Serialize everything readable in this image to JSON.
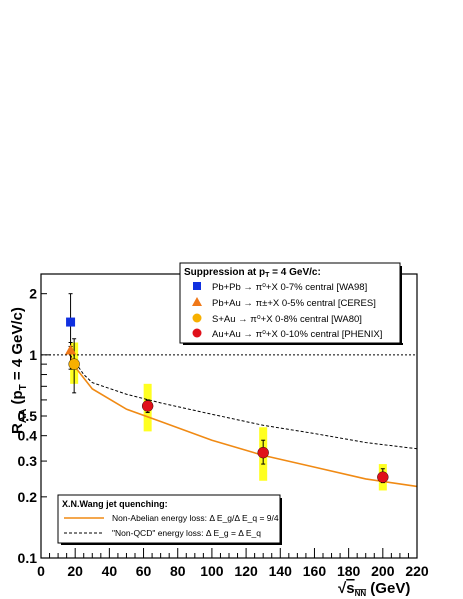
{
  "chart_data": {
    "type": "scatter",
    "xlabel": {
      "prefix": "√",
      "base": "s",
      "sub": "NN",
      "unit": " (GeV)"
    },
    "ylabel": {
      "main": "R",
      "sub": "AA",
      "paren": " (p",
      "paren_sub": "T",
      "tail": " = 4 GeV/c)"
    },
    "xlim": [
      0,
      220
    ],
    "ylim": [
      0.1,
      2.5
    ],
    "yscale": "log",
    "x_ticks": [
      0,
      20,
      40,
      60,
      80,
      100,
      120,
      140,
      160,
      180,
      200,
      220
    ],
    "x_tick_labels": [
      "0",
      "20",
      "40",
      "60",
      "80",
      "100",
      "120",
      "140",
      "160",
      "180",
      "200",
      "220"
    ],
    "y_ticks": [
      0.1,
      0.2,
      0.3,
      0.4,
      0.5,
      1,
      2
    ],
    "y_tick_labels": [
      "0.1",
      "0.2",
      "0.3",
      "0.4",
      "0.5",
      "1",
      "2"
    ],
    "reference_line": {
      "y": 1,
      "style": "dotted"
    },
    "legend_top": {
      "title": "Suppression at p",
      "title_sub": "T",
      "title_tail": " = 4 GeV/c:",
      "entries": [
        {
          "marker": "square",
          "color": "#1030e0",
          "text": "Pb+Pb → π⁰+X  0-7%  central [WA98]"
        },
        {
          "marker": "triangle",
          "color": "#f07818",
          "text": "Pb+Au → π±+X  0-5% central [CERES]"
        },
        {
          "marker": "circle",
          "color": "#f7b000",
          "text": "S+Au → π⁰+X  0-8% central [WA80]"
        },
        {
          "marker": "circle",
          "color": "#e0101a",
          "text": "Au+Au → π⁰+X  0-10% central [PHENIX]"
        }
      ]
    },
    "legend_bottom": {
      "title": "X.N.Wang jet quenching:",
      "entries": [
        {
          "style": "solid",
          "color": "#f08a14",
          "text": "Non-Abelian energy loss: Δ E_g/Δ E_q = 9/4"
        },
        {
          "style": "dashed",
          "color": "#000000",
          "text": "\"Non-QCD\" energy loss: Δ E_g = Δ E_q"
        }
      ]
    },
    "series": [
      {
        "name": "Pb+Pb → π⁰+X 0-7% central [WA98]",
        "marker": "square",
        "color": "#1030e0",
        "points": [
          {
            "x": 17.3,
            "y": 1.45,
            "err_low": 1.1,
            "err_high": 2.0
          }
        ]
      },
      {
        "name": "Pb+Au → π±+X 0-5% central [CERES]",
        "marker": "triangle",
        "color": "#f07818",
        "points": [
          {
            "x": 17.3,
            "y": 1.05,
            "err_low": 0.85,
            "err_high": 1.15
          }
        ]
      },
      {
        "name": "S+Au → π⁰+X 0-8% central [WA80]",
        "marker": "circle",
        "color": "#f7b000",
        "points": [
          {
            "x": 19.4,
            "y": 0.9,
            "err_low": 0.65,
            "err_high": 1.2,
            "sys_low": 0.72,
            "sys_high": 1.15
          }
        ]
      },
      {
        "name": "Au+Au → π⁰+X 0-10% central [PHENIX]",
        "marker": "circle",
        "color": "#e0101a",
        "points": [
          {
            "x": 62.4,
            "y": 0.56,
            "err_low": 0.52,
            "err_high": 0.6,
            "sys_low": 0.42,
            "sys_high": 0.72
          },
          {
            "x": 130,
            "y": 0.33,
            "err_low": 0.29,
            "err_high": 0.38,
            "sys_low": 0.24,
            "sys_high": 0.44
          },
          {
            "x": 200,
            "y": 0.25,
            "err_low": 0.235,
            "err_high": 0.275,
            "sys_low": 0.215,
            "sys_high": 0.29
          }
        ]
      }
    ],
    "curves": [
      {
        "style": "solid",
        "color": "#f08a14",
        "points": [
          [
            17,
            1.0
          ],
          [
            20,
            0.87
          ],
          [
            30,
            0.68
          ],
          [
            50,
            0.54
          ],
          [
            70,
            0.47
          ],
          [
            100,
            0.38
          ],
          [
            130,
            0.32
          ],
          [
            160,
            0.28
          ],
          [
            190,
            0.245
          ],
          [
            220,
            0.225
          ]
        ]
      },
      {
        "style": "dashed",
        "color": "#000000",
        "points": [
          [
            17,
            1.0
          ],
          [
            25,
            0.8
          ],
          [
            30,
            0.73
          ],
          [
            50,
            0.64
          ],
          [
            70,
            0.58
          ],
          [
            100,
            0.51
          ],
          [
            130,
            0.45
          ],
          [
            160,
            0.41
          ],
          [
            190,
            0.37
          ],
          [
            220,
            0.345
          ]
        ]
      }
    ]
  }
}
